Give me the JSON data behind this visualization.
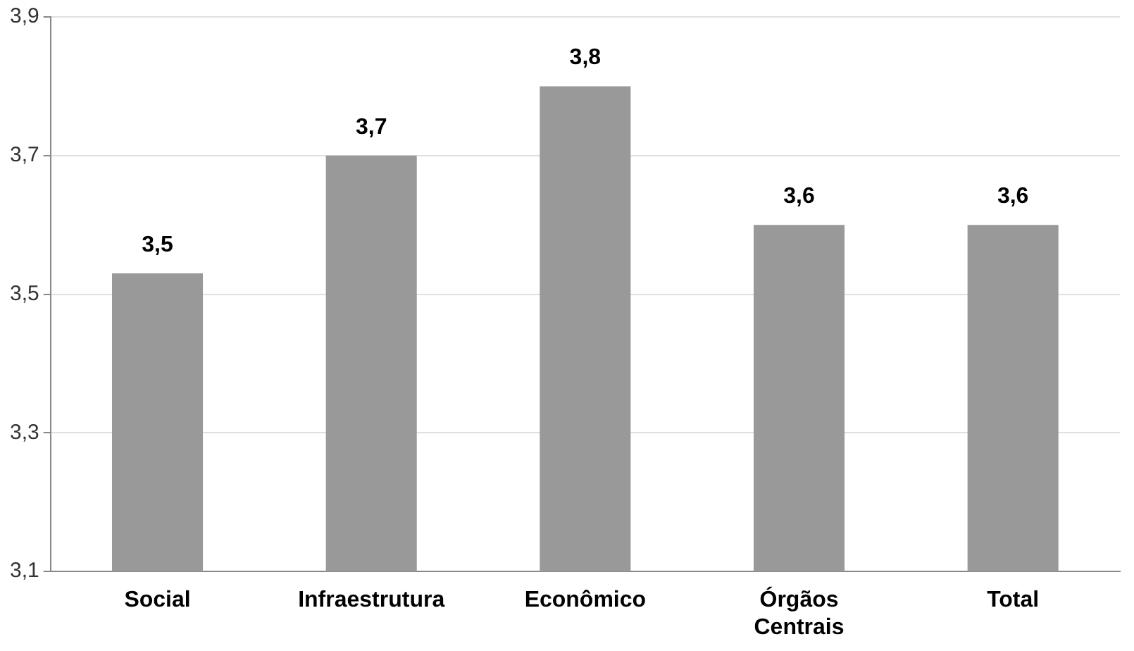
{
  "chart_data": {
    "type": "bar",
    "categories": [
      "Social",
      "Infraestrutura",
      "Econômico",
      "Órgãos Centrais",
      "Total"
    ],
    "values": [
      3.53,
      3.7,
      3.8,
      3.6,
      3.6
    ],
    "value_labels": [
      "3,5",
      "3,7",
      "3,8",
      "3,6",
      "3,6"
    ],
    "color": "#999999",
    "ylim": [
      3.1,
      3.9
    ],
    "yticks": [
      {
        "value": 3.1,
        "label": "3,1"
      },
      {
        "value": 3.3,
        "label": "3,3"
      },
      {
        "value": 3.5,
        "label": "3,5"
      },
      {
        "value": 3.7,
        "label": "3,7"
      },
      {
        "value": 3.9,
        "label": "3,9"
      }
    ],
    "grid": "y",
    "legend": false
  }
}
